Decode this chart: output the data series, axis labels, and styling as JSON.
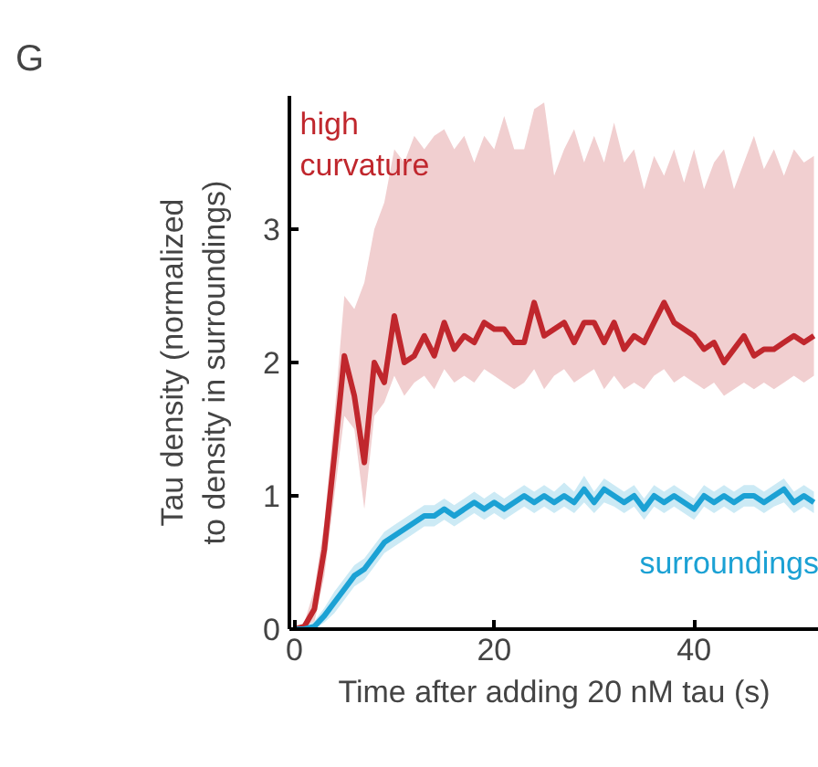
{
  "chart_data": {
    "type": "line",
    "xlabel": "Time after adding 20 nM tau (s)",
    "ylabel": "Tau density (normalized\nto density in surroundings)",
    "annotations": [
      "G"
    ],
    "xlim": [
      -0.5,
      52.5
    ],
    "xticks": [
      0,
      20,
      40
    ],
    "ylim": [
      0,
      4
    ],
    "yticks": [
      0,
      1,
      2,
      3
    ],
    "grid": false,
    "marker": "none",
    "line_style": "solid",
    "x": [
      0,
      1,
      2,
      3,
      4,
      5,
      6,
      7,
      8,
      9,
      10,
      11,
      12,
      13,
      14,
      15,
      16,
      17,
      18,
      19,
      20,
      21,
      22,
      23,
      24,
      25,
      26,
      27,
      28,
      29,
      30,
      31,
      32,
      33,
      34,
      35,
      36,
      37,
      38,
      39,
      40,
      41,
      42,
      43,
      44,
      45,
      46,
      47,
      48,
      49,
      50,
      51,
      52
    ],
    "series": [
      {
        "name": "high\ncurvature",
        "color": "#c0272d",
        "values": [
          0,
          0.02,
          0.15,
          0.6,
          1.3,
          2.05,
          1.75,
          1.25,
          2.0,
          1.85,
          2.35,
          2.0,
          2.05,
          2.2,
          2.05,
          2.3,
          2.1,
          2.2,
          2.15,
          2.3,
          2.25,
          2.25,
          2.15,
          2.15,
          2.45,
          2.2,
          2.25,
          2.3,
          2.15,
          2.3,
          2.3,
          2.15,
          2.3,
          2.1,
          2.2,
          2.15,
          2.3,
          2.45,
          2.3,
          2.25,
          2.2,
          2.1,
          2.15,
          2.0,
          2.1,
          2.2,
          2.05,
          2.1,
          2.1,
          2.15,
          2.2,
          2.15,
          2.2
        ],
        "lower": [
          0,
          0,
          0.05,
          0.4,
          1.0,
          1.6,
          1.5,
          0.9,
          1.6,
          1.7,
          1.9,
          1.75,
          1.85,
          1.9,
          1.8,
          1.95,
          1.85,
          1.9,
          1.85,
          1.95,
          1.9,
          1.85,
          1.8,
          1.85,
          1.95,
          1.8,
          1.9,
          1.95,
          1.85,
          1.9,
          1.95,
          1.8,
          1.9,
          1.8,
          1.85,
          1.8,
          1.9,
          1.95,
          1.85,
          1.9,
          1.85,
          1.8,
          1.85,
          1.75,
          1.8,
          1.85,
          1.8,
          1.85,
          1.8,
          1.85,
          1.9,
          1.85,
          1.9
        ],
        "upper": [
          0,
          0.05,
          0.3,
          0.8,
          1.6,
          2.5,
          2.4,
          2.6,
          3.0,
          3.2,
          3.6,
          3.5,
          3.7,
          3.6,
          3.7,
          3.75,
          3.6,
          3.7,
          3.5,
          3.7,
          3.6,
          3.85,
          3.6,
          3.6,
          3.9,
          3.95,
          3.4,
          3.6,
          3.75,
          3.5,
          3.7,
          3.5,
          3.8,
          3.5,
          3.6,
          3.3,
          3.55,
          3.4,
          3.6,
          3.35,
          3.6,
          3.3,
          3.5,
          3.6,
          3.3,
          3.5,
          3.7,
          3.45,
          3.6,
          3.4,
          3.6,
          3.5,
          3.55
        ]
      },
      {
        "name": "surroundings",
        "color": "#1ba1d4",
        "values": [
          0,
          0,
          0.02,
          0.1,
          0.2,
          0.3,
          0.4,
          0.45,
          0.55,
          0.65,
          0.7,
          0.75,
          0.8,
          0.85,
          0.85,
          0.9,
          0.85,
          0.9,
          0.95,
          0.9,
          0.95,
          0.9,
          0.95,
          1.0,
          0.95,
          1.0,
          0.95,
          1.0,
          0.95,
          1.05,
          0.95,
          1.05,
          1.0,
          0.95,
          1.0,
          0.9,
          1.0,
          0.95,
          1.0,
          0.95,
          0.9,
          1.0,
          0.95,
          1.0,
          0.95,
          1.0,
          1.0,
          0.95,
          1.0,
          1.05,
          0.95,
          1.0,
          0.95
        ],
        "lower": [
          0,
          0,
          0,
          0.05,
          0.12,
          0.22,
          0.32,
          0.37,
          0.47,
          0.57,
          0.62,
          0.67,
          0.72,
          0.77,
          0.77,
          0.82,
          0.77,
          0.82,
          0.87,
          0.82,
          0.87,
          0.82,
          0.87,
          0.92,
          0.87,
          0.92,
          0.87,
          0.92,
          0.87,
          0.95,
          0.87,
          0.95,
          0.92,
          0.87,
          0.92,
          0.82,
          0.92,
          0.87,
          0.92,
          0.87,
          0.82,
          0.92,
          0.87,
          0.92,
          0.87,
          0.92,
          0.92,
          0.87,
          0.92,
          0.95,
          0.87,
          0.92,
          0.87
        ],
        "upper": [
          0,
          0.02,
          0.06,
          0.16,
          0.28,
          0.38,
          0.48,
          0.53,
          0.63,
          0.73,
          0.78,
          0.83,
          0.88,
          0.93,
          0.93,
          0.98,
          0.93,
          0.98,
          1.03,
          0.98,
          1.03,
          0.98,
          1.03,
          1.08,
          1.03,
          1.08,
          1.03,
          1.1,
          1.03,
          1.15,
          1.03,
          1.13,
          1.08,
          1.03,
          1.08,
          0.98,
          1.08,
          1.03,
          1.08,
          1.03,
          0.98,
          1.08,
          1.03,
          1.08,
          1.03,
          1.08,
          1.08,
          1.03,
          1.08,
          1.13,
          1.03,
          1.08,
          1.03
        ]
      }
    ]
  }
}
